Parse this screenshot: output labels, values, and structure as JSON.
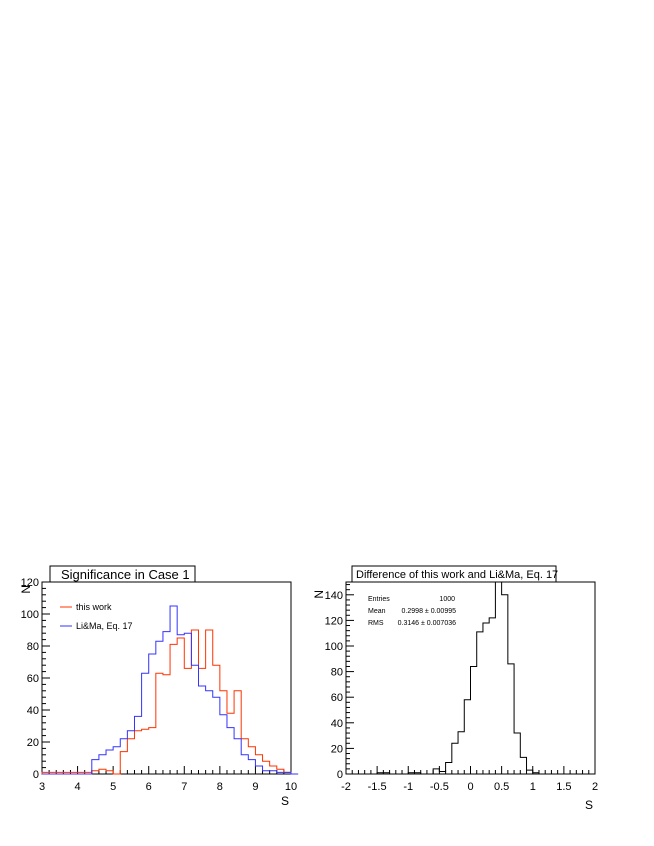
{
  "chart_data": [
    {
      "type": "histogram",
      "title": "Significance in Case 1",
      "xlabel": "S",
      "ylabel": "N",
      "xlim": [
        3,
        10
      ],
      "ylim": [
        0,
        120
      ],
      "bin_width": 0.2,
      "x_ticks": [
        "3",
        "4",
        "5",
        "6",
        "7",
        "8",
        "9",
        "10"
      ],
      "y_ticks": [
        "0",
        "20",
        "40",
        "60",
        "80",
        "100",
        "120"
      ],
      "legend_position": "top-left",
      "series": [
        {
          "name": "this work",
          "color": "#ff3300",
          "bins_start": 3.0,
          "values": [
            1,
            1,
            1,
            1,
            1,
            1,
            1,
            2,
            3,
            2,
            0,
            14,
            22,
            27,
            28,
            29,
            63,
            62,
            81,
            85,
            66,
            90,
            66,
            90,
            68,
            52,
            38,
            52,
            22,
            17,
            12,
            8,
            5,
            3,
            1,
            0
          ]
        },
        {
          "name": "Li&Ma, Eq. 17",
          "color": "#3333ff",
          "bins_start": 3.0,
          "values": [
            0,
            0,
            0,
            0,
            0,
            0,
            0,
            9,
            12,
            15,
            17,
            22,
            27,
            36,
            63,
            75,
            83,
            89,
            105,
            87,
            88,
            68,
            55,
            52,
            48,
            37,
            29,
            22,
            12,
            9,
            5,
            2,
            2,
            1,
            1,
            0
          ]
        }
      ]
    },
    {
      "type": "histogram",
      "title": "Difference of this work and Li&Ma, Eq. 17",
      "xlabel": "S",
      "ylabel": "N",
      "xlim": [
        -2,
        2
      ],
      "ylim": [
        0,
        150
      ],
      "bin_width": 0.1,
      "x_ticks": [
        "-2",
        "-1.5",
        "-1",
        "-0.5",
        "0",
        "0.5",
        "1",
        "1.5",
        "2"
      ],
      "y_ticks": [
        "0",
        "20",
        "40",
        "60",
        "80",
        "100",
        "120",
        "140"
      ],
      "stats": {
        "entries_label": "Entries",
        "entries_value": "1000",
        "mean_label": "Mean",
        "mean_value": "0.2998 ± 0.00995",
        "rms_label": "RMS",
        "rms_value": "0.3146 ± 0.007036"
      },
      "series": [
        {
          "name": "",
          "color": "#000000",
          "bins_start": -2.0,
          "values": [
            0,
            0,
            0,
            0,
            0,
            1,
            1,
            0,
            0,
            0,
            1,
            1,
            0,
            0,
            4,
            2,
            9,
            24,
            33,
            58,
            84,
            111,
            118,
            122,
            150,
            140,
            86,
            32,
            13,
            3,
            1,
            0,
            0,
            0,
            0,
            0,
            0,
            0,
            0,
            0
          ]
        }
      ]
    }
  ]
}
